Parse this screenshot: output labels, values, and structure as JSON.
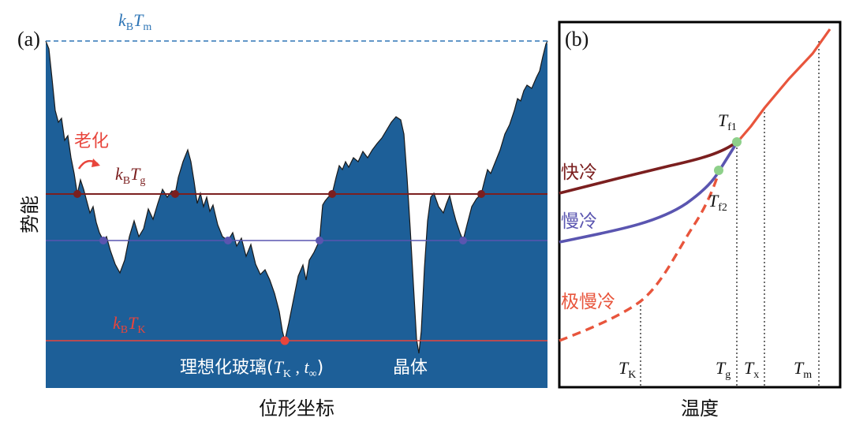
{
  "panel_a": {
    "label": "(a)",
    "y_axis_label": "势能",
    "x_axis_label": "位形坐标",
    "levels": {
      "Tm": {
        "k": "k",
        "sub1": "B",
        "T": "T",
        "sub2": "m",
        "color": "#2e75b6"
      },
      "Tg": {
        "k": "k",
        "sub1": "B",
        "T": "T",
        "sub2": "g",
        "color": "#7b1f1f"
      },
      "TK": {
        "k": "k",
        "sub1": "B",
        "T": "T",
        "sub2": "K",
        "color": "#e8453c"
      },
      "slow_color": "#5a55b0"
    },
    "aging_label": "老化",
    "ideal_glass": {
      "prefix": "理想化玻璃(",
      "T": "T",
      "Tsub": "K",
      "sep": " , ",
      "t": "t",
      "tsub": "∞",
      "suffix": ")"
    },
    "crystal_label": "晶体"
  },
  "panel_b": {
    "label": "(b)",
    "x_axis_label": "温度",
    "curves": {
      "fast": {
        "label": "快冷",
        "color": "#7b1f1f"
      },
      "slow": {
        "label": "慢冷",
        "color": "#5a55b0"
      },
      "very_slow": {
        "label": "极慢冷",
        "color": "#e8553c"
      }
    },
    "fictive": {
      "Tf1": {
        "T": "T",
        "sub": "f1"
      },
      "Tf2": {
        "T": "T",
        "sub": "f2"
      }
    },
    "ticks": {
      "TK": {
        "T": "T",
        "sub": "K"
      },
      "Tg": {
        "T": "T",
        "sub": "g"
      },
      "Tx": {
        "T": "T",
        "sub": "x"
      },
      "Tm": {
        "T": "T",
        "sub": "m"
      }
    },
    "point_color": "#8ed08a"
  }
}
